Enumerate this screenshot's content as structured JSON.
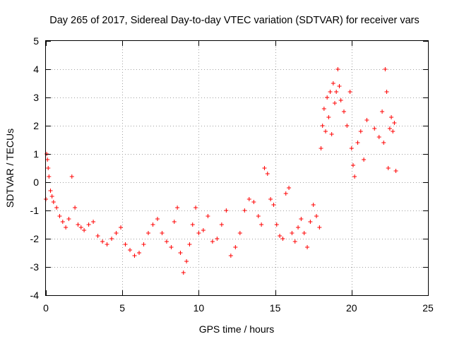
{
  "chart_data": {
    "type": "scatter",
    "title": "Day 265 of 2017, Sidereal Day-to-day VTEC variation (SDTVAR) for receiver vars",
    "xlabel": "GPS time / hours",
    "ylabel": "SDTVAR / TECUs",
    "xlim": [
      0,
      25
    ],
    "ylim": [
      -4,
      5
    ],
    "xticks": [
      0,
      5,
      10,
      15,
      20,
      25
    ],
    "xtick_labels": [
      "0",
      "5",
      "10",
      "15",
      "20",
      "25"
    ],
    "yticks": [
      -4,
      -3,
      -2,
      -1,
      0,
      1,
      2,
      3,
      4,
      5
    ],
    "ytick_labels": [
      "-4",
      "-3",
      "-2",
      "-1",
      "0",
      "1",
      "2",
      "3",
      "4",
      "5"
    ],
    "grid": true,
    "marker": "+",
    "color": "#ff0000",
    "series": [
      {
        "name": "SDTVAR",
        "x": [
          0.0,
          0.05,
          0.1,
          0.15,
          0.2,
          0.3,
          0.4,
          0.5,
          0.7,
          0.9,
          1.1,
          1.3,
          1.5,
          1.7,
          1.9,
          2.1,
          2.3,
          2.5,
          2.8,
          3.1,
          3.4,
          3.7,
          4.0,
          4.3,
          4.6,
          4.9,
          5.2,
          5.5,
          5.8,
          6.1,
          6.4,
          6.7,
          7.0,
          7.3,
          7.6,
          7.9,
          8.2,
          8.4,
          8.6,
          8.8,
          9.0,
          9.2,
          9.4,
          9.6,
          9.8,
          10.0,
          10.3,
          10.6,
          10.9,
          11.2,
          11.5,
          11.8,
          12.1,
          12.4,
          12.7,
          13.0,
          13.3,
          13.6,
          13.9,
          14.1,
          14.3,
          14.5,
          14.7,
          14.9,
          15.1,
          15.3,
          15.5,
          15.7,
          15.9,
          16.1,
          16.3,
          16.5,
          16.7,
          16.9,
          17.1,
          17.3,
          17.5,
          17.7,
          17.9,
          18.0,
          18.1,
          18.2,
          18.3,
          18.4,
          18.5,
          18.6,
          18.7,
          18.8,
          18.9,
          19.0,
          19.1,
          19.2,
          19.3,
          19.5,
          19.7,
          19.9,
          20.0,
          20.1,
          20.2,
          20.4,
          20.6,
          20.8,
          21.0,
          21.5,
          21.8,
          22.0,
          22.1,
          22.2,
          22.3,
          22.4,
          22.5,
          22.6,
          22.7,
          22.8,
          22.9
        ],
        "y": [
          -0.6,
          1.0,
          0.8,
          0.5,
          0.2,
          -0.3,
          -0.5,
          -0.7,
          -0.9,
          -1.2,
          -1.4,
          -1.6,
          -1.3,
          0.2,
          -0.9,
          -1.5,
          -1.6,
          -1.7,
          -1.5,
          -1.4,
          -1.9,
          -2.1,
          -2.2,
          -2.0,
          -1.8,
          -1.6,
          -2.2,
          -2.4,
          -2.6,
          -2.5,
          -2.2,
          -1.8,
          -1.5,
          -1.3,
          -1.8,
          -2.1,
          -2.3,
          -1.4,
          -0.9,
          -2.5,
          -3.2,
          -2.8,
          -2.2,
          -1.5,
          -0.9,
          -1.8,
          -1.7,
          -1.2,
          -2.1,
          -2.0,
          -1.5,
          -1.0,
          -2.6,
          -2.3,
          -1.8,
          -1.0,
          -0.6,
          -0.7,
          -1.2,
          -1.5,
          0.5,
          0.3,
          -0.6,
          -0.8,
          -1.5,
          -1.9,
          -2.0,
          -0.4,
          -0.2,
          -1.8,
          -2.1,
          -1.6,
          -1.3,
          -1.8,
          -2.3,
          -1.4,
          -0.8,
          -1.2,
          -1.6,
          1.2,
          2.0,
          2.6,
          1.8,
          3.0,
          2.3,
          3.2,
          1.7,
          3.5,
          2.8,
          3.2,
          4.0,
          3.4,
          2.9,
          2.5,
          2.0,
          3.2,
          1.2,
          0.6,
          0.2,
          1.4,
          1.8,
          0.8,
          2.2,
          1.9,
          1.6,
          2.5,
          1.4,
          4.0,
          3.2,
          0.5,
          1.9,
          2.3,
          1.8,
          2.1,
          0.4
        ]
      }
    ]
  }
}
